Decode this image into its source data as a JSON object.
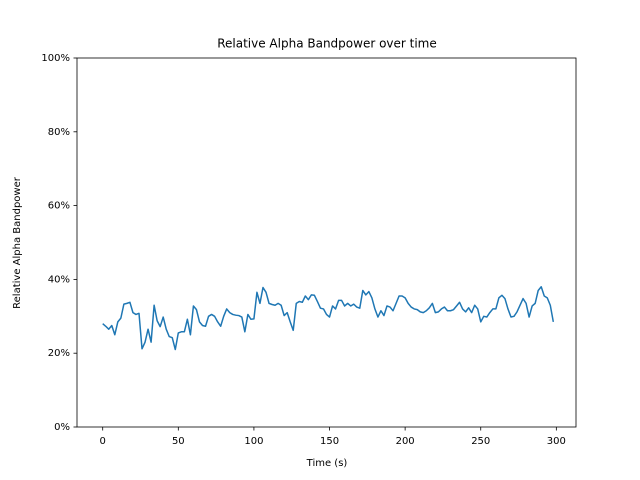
{
  "chart_data": {
    "type": "line",
    "title": "Relative Alpha Bandpower over time",
    "x_label": "Time (s)",
    "y_label": "Relative Alpha Bandpower",
    "x": [
      0,
      2,
      4,
      6,
      8,
      10,
      12,
      14,
      16,
      18,
      20,
      22,
      24,
      26,
      28,
      30,
      32,
      34,
      36,
      38,
      40,
      42,
      44,
      46,
      48,
      50,
      52,
      54,
      56,
      58,
      60,
      62,
      64,
      66,
      68,
      70,
      72,
      74,
      76,
      78,
      80,
      82,
      84,
      86,
      88,
      90,
      92,
      94,
      96,
      98,
      100,
      102,
      104,
      106,
      108,
      110,
      112,
      114,
      116,
      118,
      120,
      122,
      124,
      126,
      128,
      130,
      132,
      134,
      136,
      138,
      140,
      142,
      144,
      146,
      148,
      150,
      152,
      154,
      156,
      158,
      160,
      162,
      164,
      166,
      168,
      170,
      172,
      174,
      176,
      178,
      180,
      182,
      184,
      186,
      188,
      190,
      192,
      194,
      196,
      198,
      200,
      202,
      204,
      206,
      208,
      210,
      212,
      214,
      216,
      218,
      220,
      222,
      224,
      226,
      228,
      230,
      232,
      234,
      236,
      238,
      240,
      242,
      244,
      246,
      248,
      250,
      252,
      254,
      256,
      258,
      260,
      262,
      264,
      266,
      268,
      270,
      272,
      274,
      276,
      278,
      280,
      282,
      284,
      286,
      288,
      290,
      292,
      294,
      296,
      298
    ],
    "series": [
      {
        "color": "#1f77b4",
        "values": [
          28,
          27.3,
          26.5,
          27.5,
          25,
          28.5,
          29.5,
          33.3,
          33.5,
          33.8,
          31,
          30.5,
          30.8,
          21.2,
          23,
          26.5,
          23,
          33,
          28.8,
          27.2,
          29.8,
          26.5,
          24.5,
          24.2,
          21,
          25.5,
          25.8,
          25.8,
          29.2,
          25,
          32.8,
          31.8,
          28.5,
          27.5,
          27.3,
          30,
          30.5,
          30,
          28.5,
          27.3,
          30,
          32,
          31,
          30.5,
          30.3,
          30.2,
          29.8,
          25.8,
          30.5,
          29.2,
          29.3,
          36.5,
          33.5,
          37.8,
          36.5,
          33.5,
          33.2,
          33,
          33.5,
          33,
          30.2,
          31,
          28.5,
          26.2,
          33.5,
          34,
          33.8,
          35.5,
          34.5,
          35.8,
          35.7,
          34,
          32.2,
          32,
          30.5,
          29.8,
          32.8,
          32,
          34.3,
          34.3,
          32.8,
          33.5,
          32.8,
          33.3,
          32.5,
          32.2,
          37,
          35.8,
          36.7,
          35,
          32,
          29.8,
          31.5,
          30.2,
          32.8,
          32.5,
          31.5,
          33.5,
          35.5,
          35.5,
          35,
          33.5,
          32.5,
          32,
          31.8,
          31.2,
          31,
          31.5,
          32.3,
          33.5,
          31,
          31.2,
          32,
          32.5,
          31.5,
          31.5,
          31.8,
          32.8,
          33.8,
          32,
          31.2,
          32.3,
          31,
          33,
          32,
          28.5,
          30,
          29.8,
          31,
          32,
          32,
          35,
          35.7,
          34.8,
          32,
          29.8,
          30,
          31.2,
          33,
          34.8,
          33.5,
          29.8,
          32.8,
          33.5,
          37,
          38,
          35.5,
          35,
          33,
          28.5
        ]
      }
    ],
    "xlim": [
      -17,
      313
    ],
    "xticks": [
      0,
      50,
      100,
      150,
      200,
      250,
      300
    ],
    "ylim": [
      0,
      100
    ],
    "yticks": [
      {
        "value": 0,
        "label": "0%"
      },
      {
        "value": 20,
        "label": "20%"
      },
      {
        "value": 40,
        "label": "40%"
      },
      {
        "value": 60,
        "label": "60%"
      },
      {
        "value": 80,
        "label": "80%"
      },
      {
        "value": 100,
        "label": "100%"
      }
    ]
  }
}
